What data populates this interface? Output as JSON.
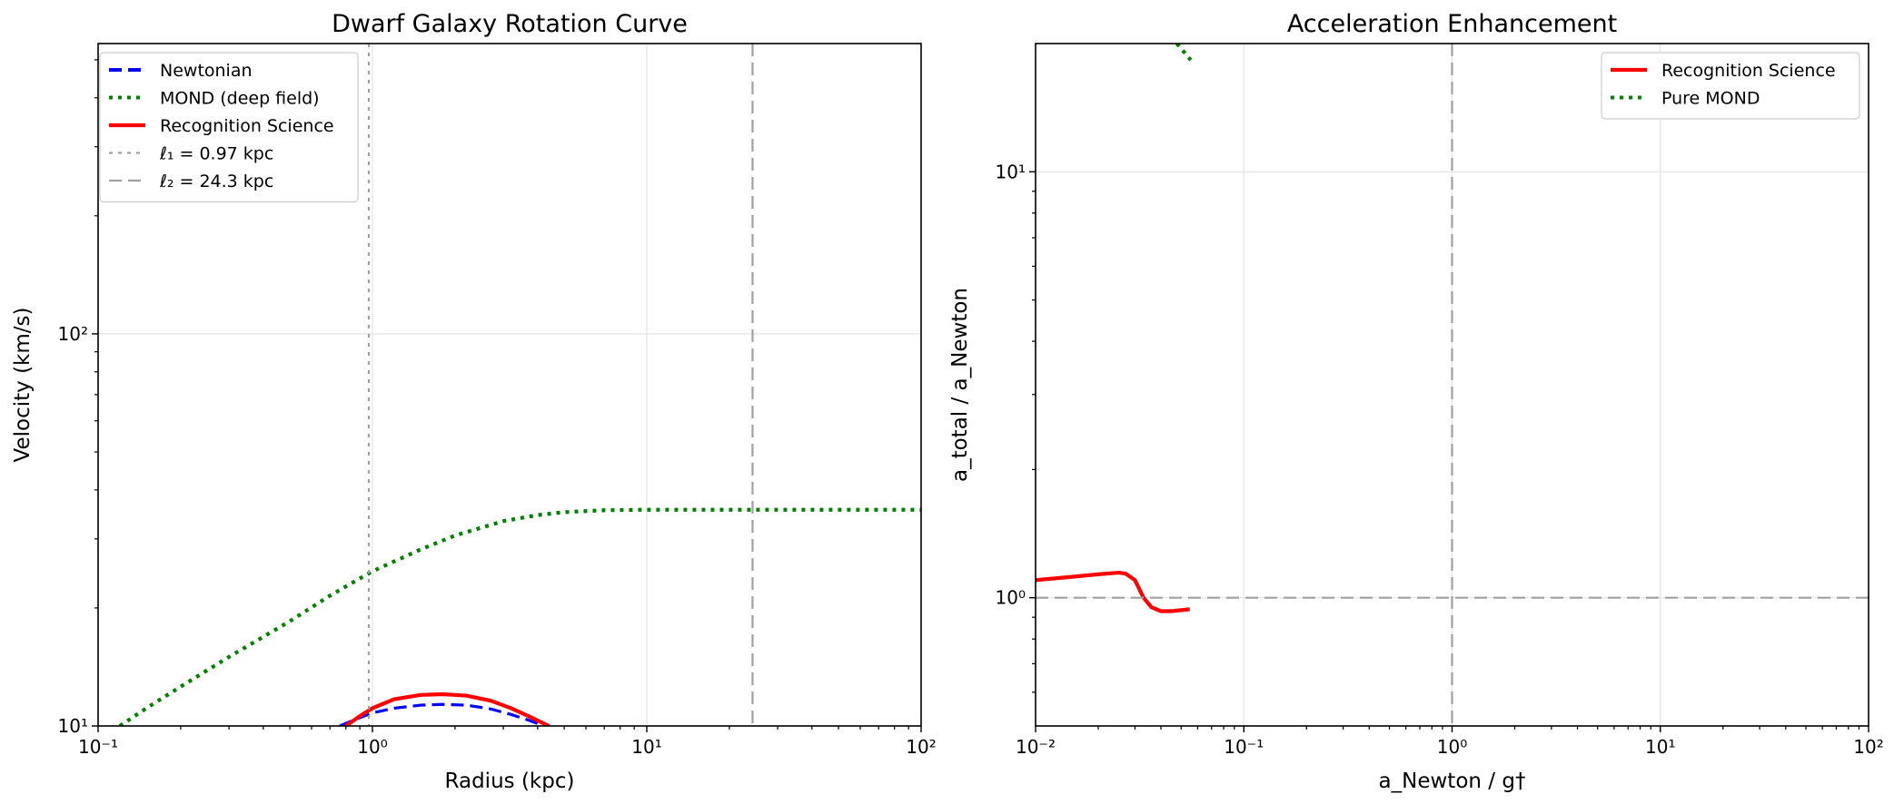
{
  "chart_data": [
    {
      "type": "line",
      "title": "Dwarf Galaxy Rotation Curve",
      "xlabel": "Radius (kpc)",
      "ylabel": "Velocity (km/s)",
      "xscale": "log",
      "yscale": "log",
      "xlim": [
        0.1,
        100
      ],
      "ylim": [
        10,
        550
      ],
      "xticks": [
        0.1,
        1,
        10,
        100
      ],
      "xtick_labels": [
        "10⁻¹",
        "10⁰",
        "10¹",
        "10²"
      ],
      "yticks": [
        10,
        100
      ],
      "ytick_labels": [
        "10¹",
        "10²"
      ],
      "grid": true,
      "legend_position": "top-left",
      "series": [
        {
          "name": "Newtonian",
          "color": "#0000ff",
          "style": "dashed",
          "x": [
            0.76,
            0.9,
            1.0,
            1.2,
            1.5,
            1.8,
            2.2,
            2.7,
            3.2,
            3.7,
            4.3
          ],
          "y": [
            10.0,
            10.5,
            10.8,
            11.1,
            11.3,
            11.35,
            11.3,
            11.05,
            10.7,
            10.35,
            9.95
          ]
        },
        {
          "name": "MOND (deep field)",
          "color": "#008000",
          "style": "dotted",
          "x": [
            0.12,
            0.15,
            0.2,
            0.3,
            0.5,
            0.7,
            1.0,
            1.5,
            2.0,
            3.0,
            4.0,
            5.0,
            7.0,
            10,
            20,
            30,
            50,
            100
          ],
          "y": [
            10.0,
            11.1,
            12.6,
            15.0,
            18.5,
            21.5,
            24.8,
            28.2,
            30.6,
            33.3,
            34.5,
            35.1,
            35.5,
            35.6,
            35.6,
            35.6,
            35.6,
            35.6
          ]
        },
        {
          "name": "Recognition Science",
          "color": "#ff0000",
          "style": "solid",
          "x": [
            0.8,
            0.9,
            1.0,
            1.2,
            1.5,
            1.8,
            2.2,
            2.7,
            3.2,
            3.7,
            4.4
          ],
          "y": [
            10.0,
            10.6,
            11.1,
            11.7,
            12.0,
            12.05,
            11.95,
            11.6,
            11.1,
            10.6,
            10.0
          ]
        },
        {
          "name": "ℓ₁ = 0.97 kpc",
          "color": "#a0a0a0",
          "style": "dotted",
          "vline": 0.97
        },
        {
          "name": "ℓ₂ = 24.3 kpc",
          "color": "#a0a0a0",
          "style": "dashed",
          "vline": 24.3
        }
      ]
    },
    {
      "type": "line",
      "title": "Acceleration Enhancement",
      "xlabel": "a_Newton / g†",
      "ylabel": "a_total / a_Newton",
      "xscale": "log",
      "yscale": "log",
      "xlim": [
        0.01,
        100
      ],
      "ylim": [
        0.5,
        20
      ],
      "xticks": [
        0.01,
        0.1,
        1,
        10,
        100
      ],
      "xtick_labels": [
        "10⁻²",
        "10⁻¹",
        "10⁰",
        "10¹",
        "10²"
      ],
      "yticks": [
        1,
        10
      ],
      "ytick_labels": [
        "10⁰",
        "10¹"
      ],
      "grid": true,
      "legend_position": "top-right",
      "series": [
        {
          "name": "Recognition Science",
          "color": "#ff0000",
          "style": "solid",
          "x": [
            0.01,
            0.015,
            0.02,
            0.025,
            0.027,
            0.03,
            0.033,
            0.036,
            0.04,
            0.045,
            0.05,
            0.055
          ],
          "y": [
            1.1,
            1.12,
            1.135,
            1.145,
            1.14,
            1.1,
            1.0,
            0.95,
            0.93,
            0.93,
            0.935,
            0.94
          ]
        },
        {
          "name": "Pure MOND",
          "color": "#008000",
          "style": "dotted",
          "x": [
            0.0477,
            0.0556
          ],
          "y": [
            20,
            18.3
          ]
        },
        {
          "name": "",
          "color": "#a0a0a0",
          "style": "dashed",
          "hline": 1.0
        },
        {
          "name": "",
          "color": "#a0a0a0",
          "style": "dashed",
          "vline": 1.0
        }
      ]
    }
  ]
}
